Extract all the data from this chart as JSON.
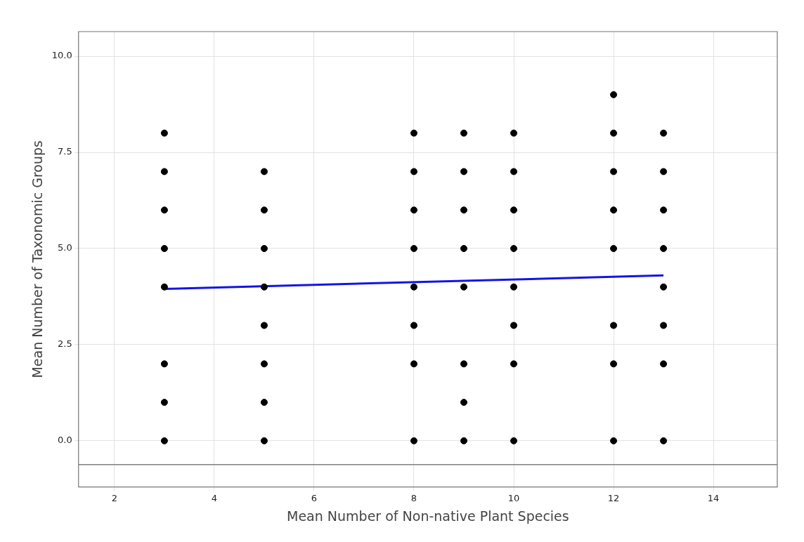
{
  "chart_data": {
    "type": "scatter",
    "xlabel": "Mean Number of Non-native Plant Species",
    "ylabel": "Mean Number of Taxonomic Groups",
    "series": [
      {
        "marker": "circle",
        "color": "#000000",
        "x": [
          3,
          3,
          3,
          3,
          3,
          3,
          3,
          3,
          5,
          5,
          5,
          5,
          5,
          5,
          5,
          5,
          8,
          8,
          8,
          8,
          8,
          8,
          8,
          8,
          9,
          9,
          9,
          9,
          9,
          9,
          9,
          9,
          10,
          10,
          10,
          10,
          10,
          10,
          10,
          10,
          12,
          12,
          12,
          12,
          12,
          12,
          12,
          12,
          13,
          13,
          13,
          13,
          13,
          13,
          13,
          13
        ],
        "values": [
          8,
          7,
          6,
          5,
          4,
          2,
          1,
          0,
          7,
          6,
          5,
          4,
          3,
          2,
          1,
          0,
          8,
          7,
          6,
          5,
          4,
          3,
          2,
          0,
          8,
          7,
          6,
          5,
          4,
          2,
          1,
          0,
          8,
          7,
          6,
          5,
          4,
          3,
          2,
          0,
          9,
          8,
          7,
          6,
          5,
          3,
          2,
          0,
          8,
          7,
          6,
          5,
          4,
          3,
          2,
          0
        ]
      },
      {
        "type": "line",
        "marker": "none",
        "color": "#1414e6",
        "x": [
          3,
          13
        ],
        "values": [
          3.95,
          4.3
        ]
      }
    ],
    "xlim": [
      1.28,
      15.28
    ],
    "xticks": [
      2,
      4,
      6,
      8,
      10,
      12,
      14
    ],
    "ylim": [
      -1.2,
      10.64
    ],
    "yticks": [
      {
        "value": 0,
        "label": "0.0"
      },
      {
        "value": 2.5,
        "label": "2.5"
      },
      {
        "value": 5,
        "label": "5.0"
      },
      {
        "value": 7.5,
        "label": "7.5"
      },
      {
        "value": 10,
        "label": "10.0"
      }
    ],
    "ref_lines": [
      {
        "axis": "y",
        "value": -0.62,
        "color": "#808080"
      }
    ],
    "grid": true,
    "legend": false
  }
}
